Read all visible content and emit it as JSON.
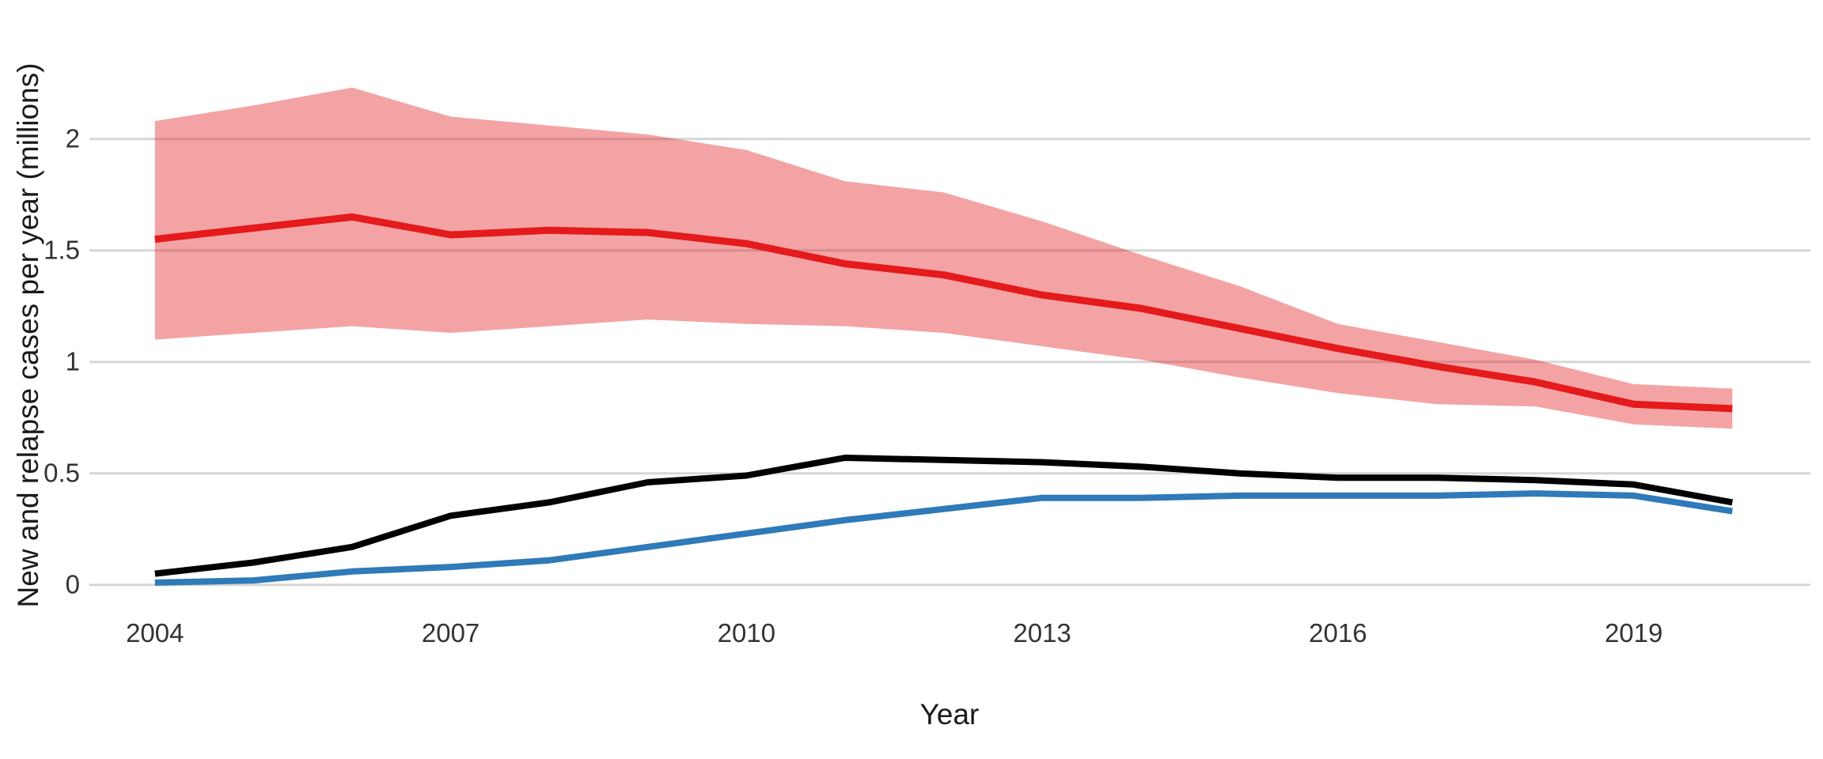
{
  "figure": {
    "title": "",
    "xlabel": "Year",
    "ylabel": "New and relapse cases per year (millions)"
  },
  "chart_data": {
    "type": "line",
    "title": "",
    "xlabel": "Year",
    "ylabel": "New and relapse cases per year (millions)",
    "x": [
      2004,
      2005,
      2006,
      2007,
      2008,
      2009,
      2010,
      2011,
      2012,
      2013,
      2014,
      2015,
      2016,
      2017,
      2018,
      2019,
      2020
    ],
    "series": [
      {
        "name": "red-line",
        "color": "#e41a1c",
        "stroke_width": 9,
        "values": [
          1.55,
          1.6,
          1.65,
          1.57,
          1.59,
          1.58,
          1.53,
          1.44,
          1.39,
          1.3,
          1.24,
          1.15,
          1.06,
          0.98,
          0.91,
          0.81,
          0.79
        ]
      },
      {
        "name": "black-line",
        "color": "#000000",
        "stroke_width": 8,
        "values": [
          0.05,
          0.1,
          0.17,
          0.31,
          0.37,
          0.46,
          0.49,
          0.57,
          0.56,
          0.55,
          0.53,
          0.5,
          0.48,
          0.48,
          0.47,
          0.45,
          0.37
        ]
      },
      {
        "name": "blue-line",
        "color": "#2f7ab8",
        "stroke_width": 8,
        "values": [
          0.01,
          0.02,
          0.06,
          0.08,
          0.11,
          0.17,
          0.23,
          0.29,
          0.34,
          0.39,
          0.39,
          0.4,
          0.4,
          0.4,
          0.41,
          0.4,
          0.33
        ]
      }
    ],
    "band": {
      "name": "red-uncertainty-band",
      "color": "#e41a1c",
      "opacity": 0.4,
      "upper": [
        2.08,
        2.15,
        2.23,
        2.1,
        2.06,
        2.02,
        1.95,
        1.81,
        1.76,
        1.63,
        1.48,
        1.34,
        1.17,
        1.09,
        1.01,
        0.9,
        0.88
      ],
      "lower": [
        1.1,
        1.13,
        1.16,
        1.13,
        1.16,
        1.19,
        1.17,
        1.16,
        1.13,
        1.07,
        1.01,
        0.93,
        0.86,
        0.81,
        0.8,
        0.72,
        0.7
      ]
    },
    "x_ticks": [
      "2004",
      "2007",
      "2010",
      "2013",
      "2016",
      "2019"
    ],
    "x_tick_values": [
      2004,
      2007,
      2010,
      2013,
      2016,
      2019
    ],
    "y_ticks": [
      "0",
      "0.5",
      "1",
      "1.5",
      "2"
    ],
    "y_tick_values": [
      0,
      0.5,
      1,
      1.5,
      2
    ],
    "ylim": [
      0,
      2.35
    ],
    "xlim": [
      2004,
      2020
    ],
    "grid": "horizontal-major-only",
    "grid_color": "#d6d6d6",
    "background": "#ffffff",
    "legend": "none"
  }
}
